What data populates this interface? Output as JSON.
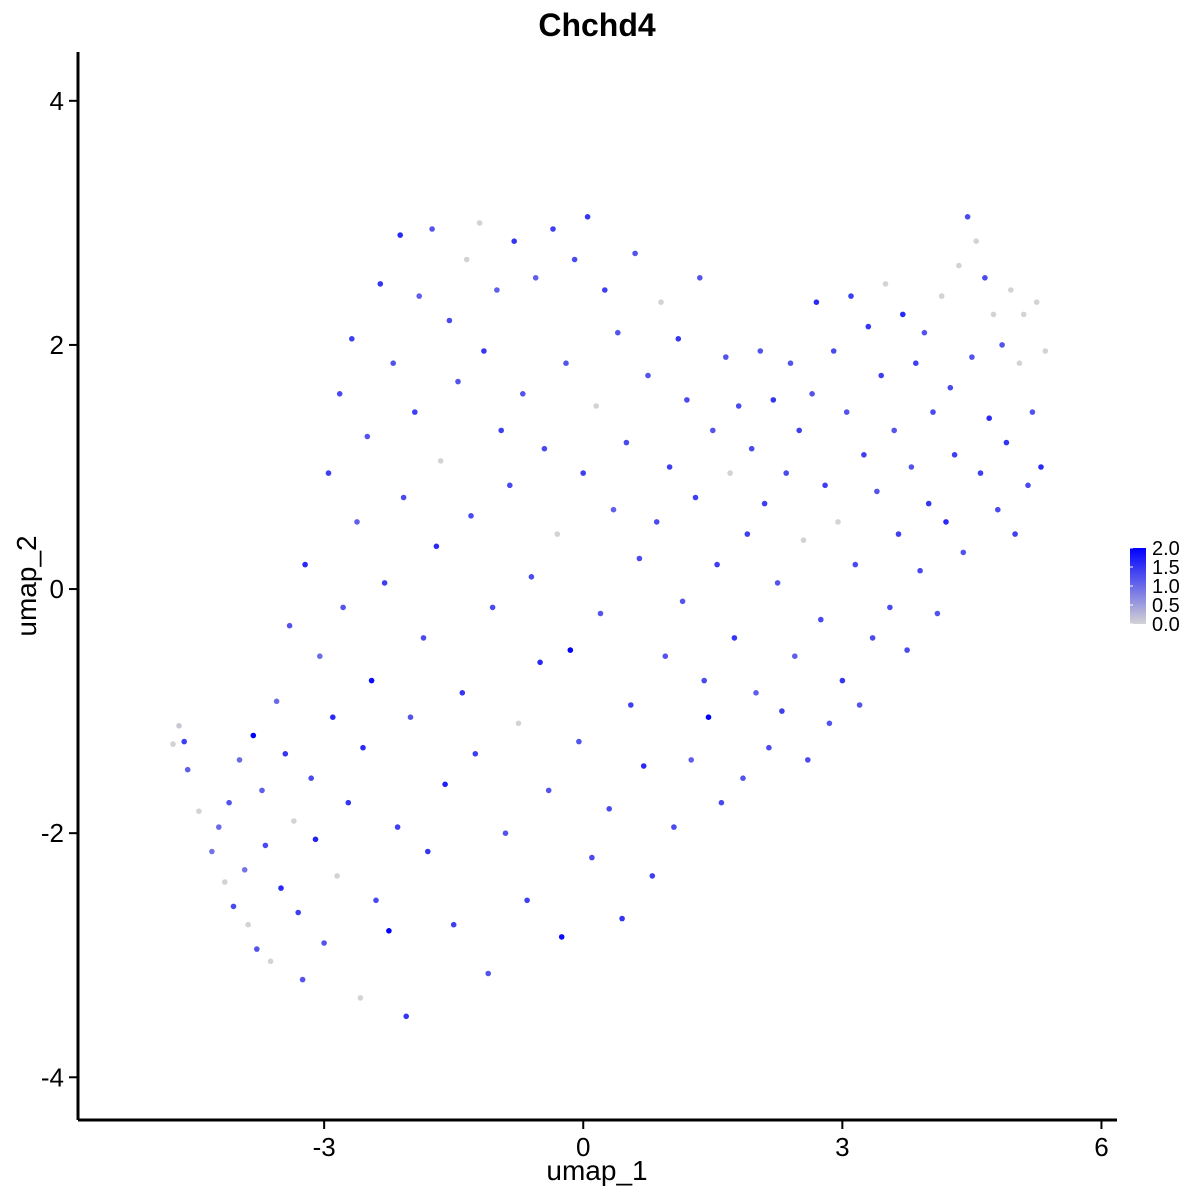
{
  "chart_data": {
    "type": "scatter",
    "title": "Chchd4",
    "xlabel": "umap_1",
    "ylabel": "umap_2",
    "xlim": [
      -5.85,
      6.18
    ],
    "ylim": [
      -4.35,
      4.4
    ],
    "xticks": [
      -3,
      0,
      3,
      6
    ],
    "xtick_labels": [
      "-3",
      "0",
      "3",
      "6"
    ],
    "yticks": [
      -4,
      -2,
      0,
      2,
      4
    ],
    "ytick_labels": [
      "-4",
      "-2",
      "0",
      "2",
      "4"
    ],
    "grid": false,
    "legend": {
      "placement": "right",
      "type": "colorbar",
      "min": 0.0,
      "max": 2.0,
      "ticks": [
        0.0,
        0.5,
        1.0,
        1.5,
        2.0
      ],
      "tick_labels": [
        "0.0",
        "0.5",
        "1.0",
        "1.5",
        "2.0"
      ]
    },
    "colors": {
      "low": "#d3d3d3",
      "high": "#0000ff"
    },
    "point_count_note": "",
    "series": [
      {
        "points": [
          [
            -4.75,
            -1.27,
            0.0
          ],
          [
            -4.68,
            -1.12,
            0.1
          ],
          [
            -4.62,
            -1.25,
            1.4
          ],
          [
            -4.58,
            -1.48,
            1.1
          ],
          [
            -4.45,
            -1.82,
            0.0
          ],
          [
            -4.3,
            -2.15,
            0.9
          ],
          [
            -4.22,
            -1.95,
            1.0
          ],
          [
            -4.15,
            -2.4,
            0.0
          ],
          [
            -4.1,
            -1.75,
            1.2
          ],
          [
            -4.05,
            -2.6,
            1.3
          ],
          [
            -3.98,
            -1.4,
            1.0
          ],
          [
            -3.92,
            -2.3,
            0.9
          ],
          [
            -3.88,
            -2.75,
            0.0
          ],
          [
            -3.82,
            -1.2,
            2.0
          ],
          [
            -3.78,
            -2.95,
            1.2
          ],
          [
            -3.72,
            -1.65,
            1.1
          ],
          [
            -3.68,
            -2.1,
            1.3
          ],
          [
            -3.62,
            -3.05,
            0.0
          ],
          [
            -3.55,
            -0.92,
            1.0
          ],
          [
            -3.5,
            -2.45,
            1.6
          ],
          [
            -3.45,
            -1.35,
            1.5
          ],
          [
            -3.4,
            -0.3,
            1.2
          ],
          [
            -3.35,
            -1.9,
            0.0
          ],
          [
            -3.3,
            -2.65,
            1.4
          ],
          [
            -3.25,
            -3.2,
            1.2
          ],
          [
            -3.22,
            0.2,
            1.6
          ],
          [
            -3.15,
            -1.55,
            1.3
          ],
          [
            -3.1,
            -2.05,
            1.7
          ],
          [
            -3.05,
            -0.55,
            1.0
          ],
          [
            -3.0,
            -2.9,
            1.2
          ],
          [
            -2.95,
            0.95,
            1.4
          ],
          [
            -2.9,
            -1.05,
            1.6
          ],
          [
            -2.85,
            -2.35,
            0.0
          ],
          [
            -2.82,
            1.6,
            1.3
          ],
          [
            -2.78,
            -0.15,
            1.2
          ],
          [
            -2.72,
            -1.75,
            1.5
          ],
          [
            -2.68,
            2.05,
            1.4
          ],
          [
            -2.62,
            0.55,
            1.1
          ],
          [
            -2.58,
            -3.35,
            0.0
          ],
          [
            -2.55,
            -1.3,
            1.6
          ],
          [
            -2.5,
            1.25,
            1.2
          ],
          [
            -2.45,
            -0.75,
            1.9
          ],
          [
            -2.4,
            -2.55,
            1.3
          ],
          [
            -2.35,
            2.5,
            1.5
          ],
          [
            -2.3,
            0.05,
            1.4
          ],
          [
            -2.25,
            -2.8,
            2.0
          ],
          [
            -2.2,
            1.85,
            1.2
          ],
          [
            -2.15,
            -1.95,
            1.4
          ],
          [
            -2.12,
            2.9,
            1.6
          ],
          [
            -2.08,
            0.75,
            1.3
          ],
          [
            -2.05,
            -3.5,
            1.5
          ],
          [
            -2.0,
            -1.05,
            1.2
          ],
          [
            -1.95,
            1.45,
            1.4
          ],
          [
            -1.9,
            2.4,
            1.1
          ],
          [
            -1.85,
            -0.4,
            1.3
          ],
          [
            -1.8,
            -2.15,
            1.5
          ],
          [
            -1.75,
            2.95,
            1.2
          ],
          [
            -1.7,
            0.35,
            1.6
          ],
          [
            -1.65,
            1.05,
            0.0
          ],
          [
            -1.6,
            -1.6,
            1.7
          ],
          [
            -1.55,
            2.2,
            1.3
          ],
          [
            -1.5,
            -2.75,
            1.4
          ],
          [
            -1.45,
            1.7,
            1.2
          ],
          [
            -1.4,
            -0.85,
            1.5
          ],
          [
            -1.35,
            2.7,
            0.0
          ],
          [
            -1.3,
            0.6,
            1.3
          ],
          [
            -1.25,
            -1.35,
            1.4
          ],
          [
            -1.2,
            3.0,
            0.0
          ],
          [
            -1.15,
            1.95,
            1.5
          ],
          [
            -1.1,
            -3.15,
            1.2
          ],
          [
            -1.05,
            -0.15,
            1.3
          ],
          [
            -1.0,
            2.45,
            1.1
          ],
          [
            -0.95,
            1.3,
            1.4
          ],
          [
            -0.9,
            -2.0,
            1.2
          ],
          [
            -0.85,
            0.85,
            1.3
          ],
          [
            -0.8,
            2.85,
            1.5
          ],
          [
            -0.75,
            -1.1,
            0.0
          ],
          [
            -0.7,
            1.6,
            1.2
          ],
          [
            -0.65,
            -2.55,
            1.4
          ],
          [
            -0.6,
            0.1,
            1.3
          ],
          [
            -0.55,
            2.55,
            1.1
          ],
          [
            -0.5,
            -0.6,
            1.6
          ],
          [
            -0.45,
            1.15,
            1.3
          ],
          [
            -0.4,
            -1.65,
            1.2
          ],
          [
            -0.35,
            2.95,
            1.4
          ],
          [
            -0.3,
            0.45,
            0.0
          ],
          [
            -0.25,
            -2.85,
            1.9
          ],
          [
            -0.2,
            1.85,
            1.2
          ],
          [
            -0.15,
            -0.5,
            2.0
          ],
          [
            -0.1,
            2.7,
            1.3
          ],
          [
            -0.05,
            -1.25,
            1.2
          ],
          [
            0.0,
            0.95,
            1.4
          ],
          [
            0.05,
            3.05,
            1.5
          ],
          [
            0.1,
            -2.2,
            1.3
          ],
          [
            0.15,
            1.5,
            0.0
          ],
          [
            0.2,
            -0.2,
            1.2
          ],
          [
            0.25,
            2.45,
            1.4
          ],
          [
            0.3,
            -1.8,
            1.3
          ],
          [
            0.35,
            0.65,
            1.1
          ],
          [
            0.4,
            2.1,
            1.2
          ],
          [
            0.45,
            -2.7,
            1.5
          ],
          [
            0.5,
            1.2,
            1.3
          ],
          [
            0.55,
            -0.95,
            1.4
          ],
          [
            0.6,
            2.75,
            1.2
          ],
          [
            0.65,
            0.25,
            1.3
          ],
          [
            0.7,
            -1.45,
            1.6
          ],
          [
            0.75,
            1.75,
            1.2
          ],
          [
            0.8,
            -2.35,
            1.4
          ],
          [
            0.85,
            0.55,
            1.3
          ],
          [
            0.9,
            2.35,
            0.0
          ],
          [
            0.95,
            -0.55,
            1.2
          ],
          [
            1.0,
            1.0,
            1.4
          ],
          [
            1.05,
            -1.95,
            1.3
          ],
          [
            1.1,
            2.05,
            1.5
          ],
          [
            1.15,
            -0.1,
            1.2
          ],
          [
            1.2,
            1.55,
            1.3
          ],
          [
            1.25,
            -1.4,
            1.1
          ],
          [
            1.3,
            0.75,
            1.4
          ],
          [
            1.35,
            2.55,
            1.2
          ],
          [
            1.4,
            -0.75,
            1.3
          ],
          [
            1.45,
            -1.05,
            2.0
          ],
          [
            1.5,
            1.3,
            1.2
          ],
          [
            1.55,
            0.2,
            1.4
          ],
          [
            1.6,
            -1.75,
            1.3
          ],
          [
            1.65,
            1.9,
            1.2
          ],
          [
            1.7,
            0.95,
            0.0
          ],
          [
            1.75,
            -0.4,
            1.5
          ],
          [
            1.8,
            1.5,
            1.3
          ],
          [
            1.85,
            -1.55,
            1.2
          ],
          [
            1.9,
            0.45,
            1.4
          ],
          [
            1.95,
            1.15,
            1.3
          ],
          [
            2.0,
            -0.85,
            1.1
          ],
          [
            2.05,
            1.95,
            1.2
          ],
          [
            2.1,
            0.7,
            1.4
          ],
          [
            2.15,
            -1.3,
            1.3
          ],
          [
            2.2,
            1.55,
            1.5
          ],
          [
            2.25,
            0.05,
            1.2
          ],
          [
            2.3,
            -1.0,
            1.4
          ],
          [
            2.35,
            0.95,
            1.3
          ],
          [
            2.4,
            1.85,
            1.2
          ],
          [
            2.45,
            -0.55,
            1.1
          ],
          [
            2.5,
            1.3,
            1.4
          ],
          [
            2.55,
            0.4,
            0.0
          ],
          [
            2.6,
            -1.4,
            1.3
          ],
          [
            2.65,
            1.6,
            1.2
          ],
          [
            2.7,
            2.35,
            1.6
          ],
          [
            2.75,
            -0.25,
            1.3
          ],
          [
            2.8,
            0.85,
            1.4
          ],
          [
            2.85,
            -1.1,
            1.2
          ],
          [
            2.9,
            1.95,
            1.3
          ],
          [
            2.95,
            0.55,
            0.0
          ],
          [
            3.0,
            -0.75,
            1.5
          ],
          [
            3.05,
            1.45,
            1.2
          ],
          [
            3.1,
            2.4,
            1.4
          ],
          [
            3.15,
            0.2,
            1.3
          ],
          [
            3.2,
            -0.95,
            1.2
          ],
          [
            3.25,
            1.1,
            1.4
          ],
          [
            3.3,
            2.15,
            1.5
          ],
          [
            3.35,
            -0.4,
            1.3
          ],
          [
            3.4,
            0.8,
            1.2
          ],
          [
            3.45,
            1.75,
            1.4
          ],
          [
            3.5,
            2.5,
            0.0
          ],
          [
            3.55,
            -0.15,
            1.3
          ],
          [
            3.6,
            1.3,
            1.2
          ],
          [
            3.65,
            0.45,
            1.4
          ],
          [
            3.7,
            2.25,
            1.6
          ],
          [
            3.75,
            -0.5,
            1.3
          ],
          [
            3.8,
            1.0,
            1.2
          ],
          [
            3.85,
            1.85,
            1.4
          ],
          [
            3.9,
            0.15,
            1.3
          ],
          [
            3.95,
            2.1,
            1.2
          ],
          [
            4.0,
            0.7,
            1.5
          ],
          [
            4.05,
            1.45,
            1.3
          ],
          [
            4.1,
            -0.2,
            1.2
          ],
          [
            4.15,
            2.4,
            0.0
          ],
          [
            4.2,
            0.55,
            1.6
          ],
          [
            4.25,
            1.65,
            1.3
          ],
          [
            4.3,
            1.1,
            1.4
          ],
          [
            4.35,
            2.65,
            0.0
          ],
          [
            4.4,
            0.3,
            1.2
          ],
          [
            4.45,
            3.05,
            1.3
          ],
          [
            4.5,
            1.9,
            1.2
          ],
          [
            4.55,
            2.85,
            0.0
          ],
          [
            4.6,
            0.95,
            1.4
          ],
          [
            4.65,
            2.55,
            1.3
          ],
          [
            4.7,
            1.4,
            1.6
          ],
          [
            4.75,
            2.25,
            0.0
          ],
          [
            4.8,
            0.65,
            1.3
          ],
          [
            4.85,
            2.0,
            1.2
          ],
          [
            4.9,
            1.2,
            1.5
          ],
          [
            4.95,
            2.45,
            0.0
          ],
          [
            5.0,
            0.45,
            1.4
          ],
          [
            5.05,
            1.85,
            0.0
          ],
          [
            5.1,
            2.25,
            0.0
          ],
          [
            5.15,
            0.85,
            1.3
          ],
          [
            5.2,
            1.45,
            1.2
          ],
          [
            5.25,
            2.35,
            0.0
          ],
          [
            5.3,
            1.0,
            1.6
          ],
          [
            5.35,
            1.95,
            0.0
          ]
        ]
      }
    ]
  }
}
